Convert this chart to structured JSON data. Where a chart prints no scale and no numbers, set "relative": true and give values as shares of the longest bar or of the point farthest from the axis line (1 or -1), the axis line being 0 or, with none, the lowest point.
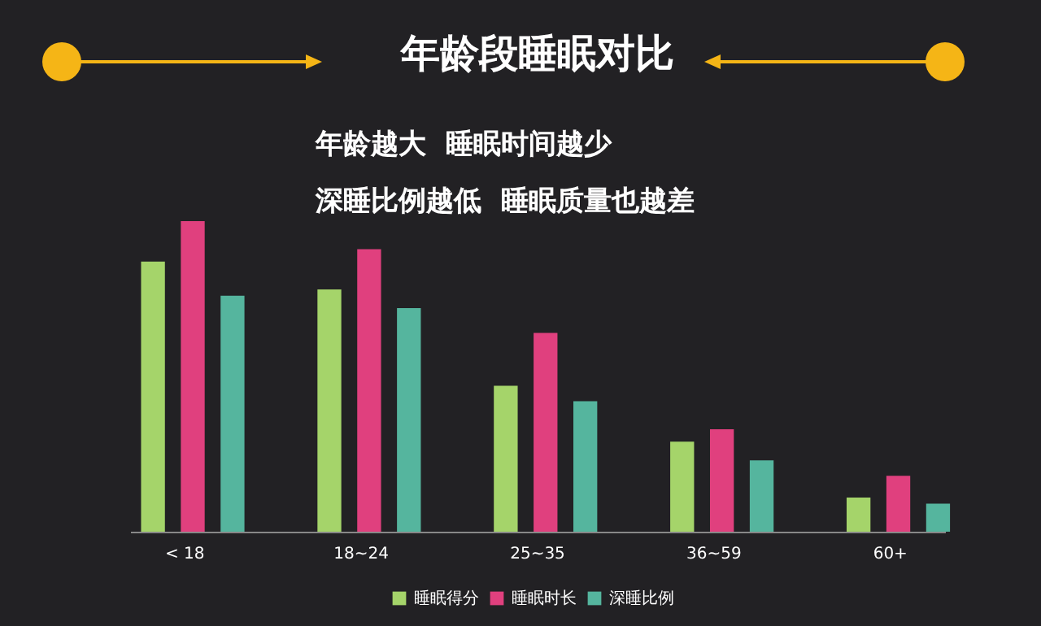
{
  "chart_data": {
    "type": "bar",
    "title": "年龄段睡眠对比",
    "subtitle": "年龄越大  睡眠时间越少",
    "annotations": [
      "深睡比例越低  睡眠质量也越差"
    ],
    "relative": true,
    "categories": [
      "< 18",
      "18~24",
      "25~35",
      "36~59",
      "60+"
    ],
    "series": [
      {
        "name": "睡眠得分",
        "color": "#a5d46a",
        "values": [
          0.87,
          0.78,
          0.47,
          0.29,
          0.11
        ]
      },
      {
        "name": "睡眠时长",
        "color": "#e0407e",
        "values": [
          1,
          0.91,
          0.64,
          0.33,
          0.18
        ]
      },
      {
        "name": "深睡比例",
        "color": "#55b59e",
        "values": [
          0.76,
          0.72,
          0.42,
          0.23,
          0.09
        ]
      }
    ],
    "legend": "bottom",
    "grid": false
  }
}
